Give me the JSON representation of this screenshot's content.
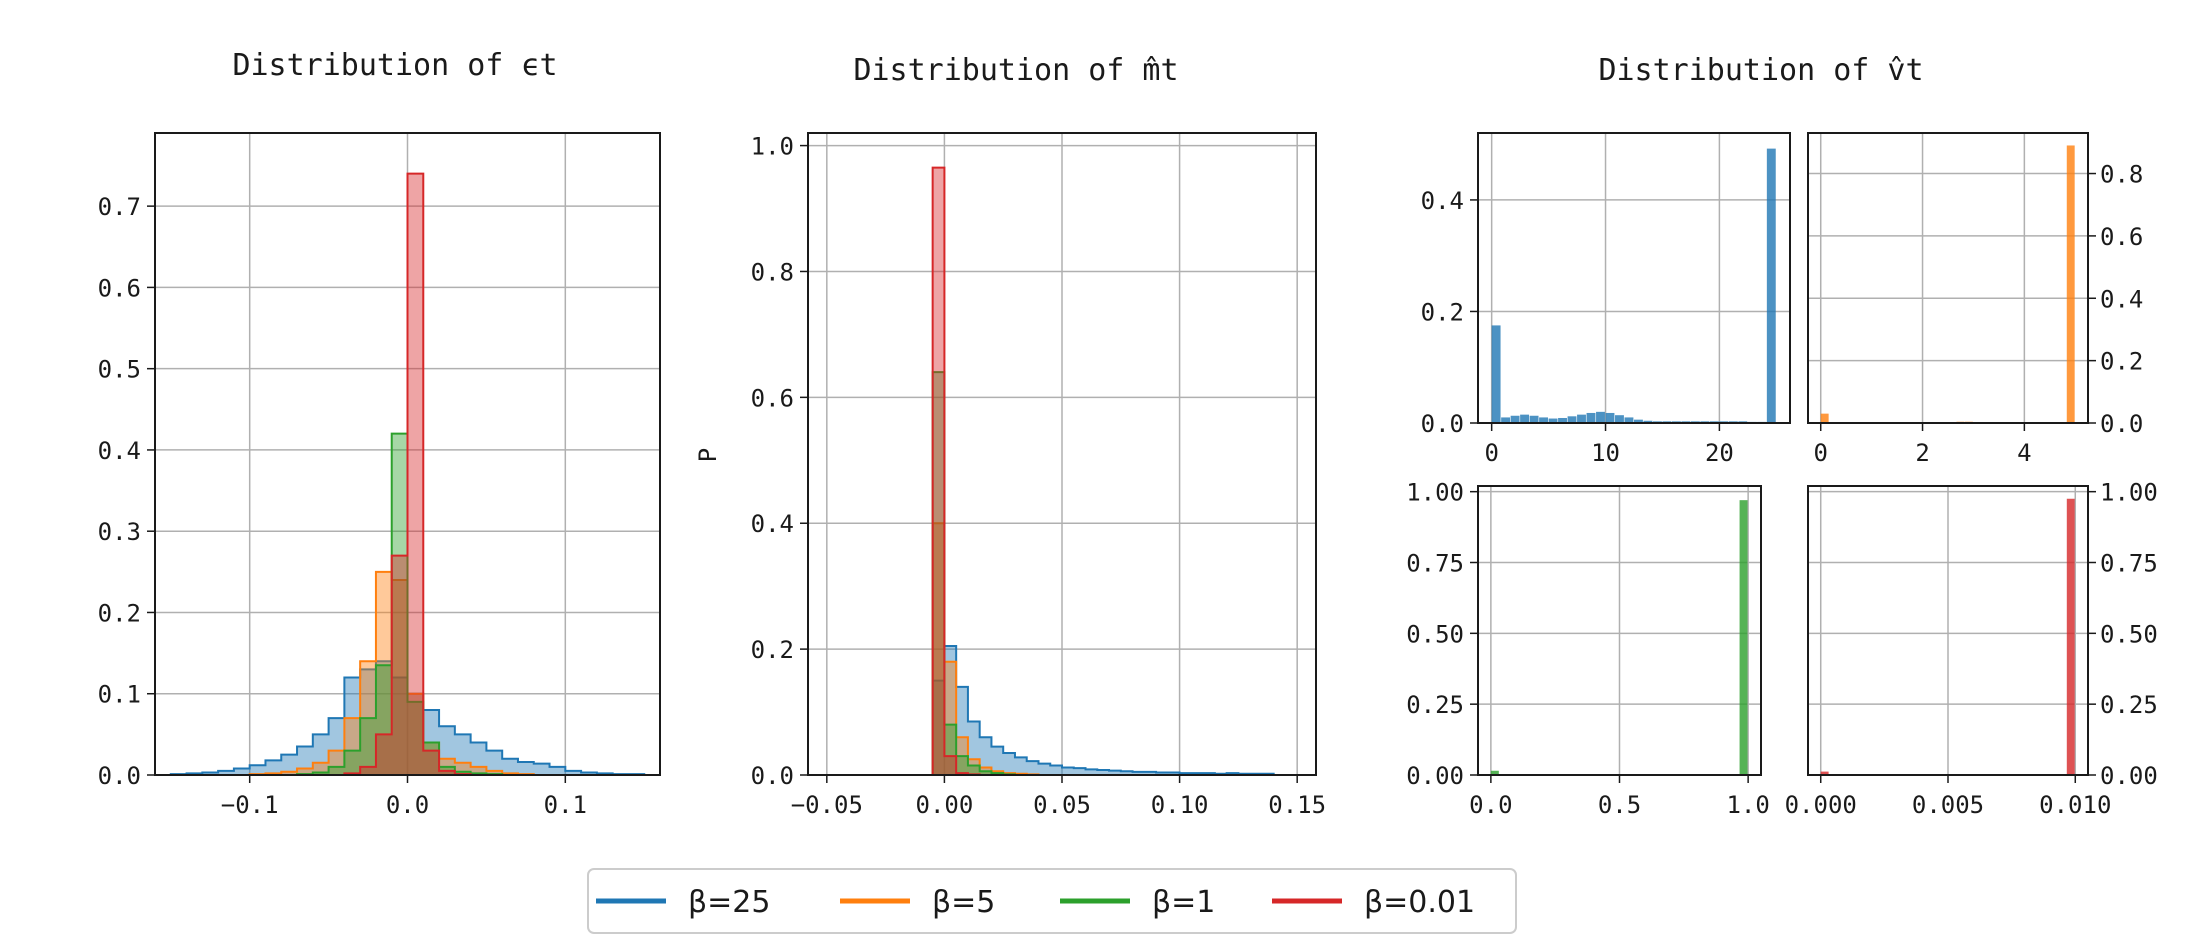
{
  "colors": {
    "b25": "#1f77b4",
    "b5": "#ff7f0e",
    "b1": "#2ca02c",
    "b001": "#d62728"
  },
  "legend": [
    {
      "label": "β=25",
      "color": "#1f77b4"
    },
    {
      "label": "β=5",
      "color": "#ff7f0e"
    },
    {
      "label": "β=1",
      "color": "#2ca02c"
    },
    {
      "label": "β=0.01",
      "color": "#d62728"
    }
  ],
  "chart_data": [
    {
      "type": "area",
      "title": "Distribution of ϵt",
      "xlim": [
        -0.16,
        0.16
      ],
      "ylim": [
        0,
        0.79
      ],
      "xticks": [
        -0.1,
        0,
        0.1
      ],
      "xtick_labels": [
        "−0.1",
        "0.0",
        "0.1"
      ],
      "yticks": [
        0,
        0.1,
        0.2,
        0.3,
        0.4,
        0.5,
        0.6,
        0.7
      ],
      "ytick_labels": [
        "0.0",
        "0.1",
        "0.2",
        "0.3",
        "0.4",
        "0.5",
        "0.6",
        "0.7"
      ],
      "grid": true,
      "bin_edges": [
        -0.15,
        -0.14,
        -0.13,
        -0.12,
        -0.11,
        -0.1,
        -0.09,
        -0.08,
        -0.07,
        -0.06,
        -0.05,
        -0.04,
        -0.03,
        -0.02,
        -0.01,
        0.0,
        0.01,
        0.02,
        0.03,
        0.04,
        0.05,
        0.06,
        0.07,
        0.08,
        0.09,
        0.1,
        0.11,
        0.12,
        0.13,
        0.14,
        0.15
      ],
      "series": [
        {
          "key": "b25",
          "values": [
            0.001,
            0.002,
            0.003,
            0.005,
            0.008,
            0.012,
            0.018,
            0.025,
            0.035,
            0.05,
            0.07,
            0.12,
            0.13,
            0.14,
            0.12,
            0.1,
            0.08,
            0.06,
            0.05,
            0.04,
            0.03,
            0.02,
            0.016,
            0.014,
            0.01,
            0.005,
            0.003,
            0.002,
            0.001,
            0.001
          ]
        },
        {
          "key": "b5",
          "values": [
            0,
            0,
            0,
            0,
            0,
            0.001,
            0.002,
            0.004,
            0.008,
            0.015,
            0.03,
            0.07,
            0.14,
            0.25,
            0.24,
            0.1,
            0.04,
            0.02,
            0.015,
            0.01,
            0.005,
            0.002,
            0.001,
            0,
            0,
            0,
            0,
            0,
            0,
            0
          ]
        },
        {
          "key": "b1",
          "values": [
            0,
            0,
            0,
            0,
            0,
            0,
            0,
            0,
            0.001,
            0.003,
            0.01,
            0.03,
            0.07,
            0.135,
            0.42,
            0.09,
            0.04,
            0.01,
            0.004,
            0.002,
            0.001,
            0,
            0,
            0,
            0,
            0,
            0,
            0,
            0,
            0
          ]
        },
        {
          "key": "b001",
          "values": [
            0,
            0,
            0,
            0,
            0,
            0,
            0,
            0,
            0,
            0,
            0,
            0.002,
            0.01,
            0.05,
            0.27,
            0.74,
            0.03,
            0.005,
            0.001,
            0,
            0,
            0,
            0,
            0,
            0,
            0,
            0,
            0,
            0,
            0
          ]
        }
      ]
    },
    {
      "type": "area",
      "title": "Distribution of m̂t",
      "ylabel": "P",
      "xlim": [
        -0.058,
        0.158
      ],
      "ylim": [
        0,
        1.02
      ],
      "xticks": [
        -0.05,
        0,
        0.05,
        0.1,
        0.15
      ],
      "xtick_labels": [
        "−0.05",
        "0.00",
        "0.05",
        "0.10",
        "0.15"
      ],
      "yticks": [
        0,
        0.2,
        0.4,
        0.6,
        0.8,
        1.0
      ],
      "ytick_labels": [
        "0.0",
        "0.2",
        "0.4",
        "0.6",
        "0.8",
        "1.0"
      ],
      "grid": true,
      "bin_edges": [
        -0.005,
        0.0,
        0.005,
        0.01,
        0.015,
        0.02,
        0.025,
        0.03,
        0.035,
        0.04,
        0.045,
        0.05,
        0.055,
        0.06,
        0.065,
        0.07,
        0.075,
        0.08,
        0.085,
        0.09,
        0.095,
        0.1,
        0.105,
        0.11,
        0.115,
        0.12,
        0.125,
        0.13,
        0.135,
        0.14
      ],
      "series": [
        {
          "key": "b25",
          "values": [
            0.15,
            0.205,
            0.14,
            0.085,
            0.06,
            0.045,
            0.035,
            0.028,
            0.022,
            0.018,
            0.015,
            0.012,
            0.011,
            0.009,
            0.008,
            0.007,
            0.006,
            0.005,
            0.005,
            0.004,
            0.004,
            0.003,
            0.003,
            0.003,
            0.002,
            0.003,
            0.002,
            0.002,
            0.002
          ]
        },
        {
          "key": "b5",
          "values": [
            0.4,
            0.18,
            0.06,
            0.025,
            0.012,
            0.006,
            0.003,
            0.002,
            0.001,
            0,
            0,
            0,
            0,
            0,
            0,
            0,
            0,
            0,
            0,
            0,
            0,
            0,
            0,
            0,
            0,
            0,
            0,
            0,
            0
          ]
        },
        {
          "key": "b1",
          "values": [
            0.64,
            0.08,
            0.03,
            0.015,
            0.006,
            0.003,
            0.001,
            0,
            0,
            0,
            0,
            0,
            0,
            0,
            0,
            0,
            0,
            0,
            0,
            0,
            0,
            0,
            0,
            0,
            0,
            0,
            0,
            0,
            0
          ]
        },
        {
          "key": "b001",
          "values": [
            0.965,
            0.03,
            0.003,
            0.001,
            0,
            0,
            0,
            0,
            0,
            0,
            0,
            0,
            0,
            0,
            0,
            0,
            0,
            0,
            0,
            0,
            0,
            0,
            0,
            0,
            0,
            0,
            0,
            0,
            0
          ]
        }
      ]
    },
    {
      "type": "bar",
      "title": "Distribution of v̂t",
      "series_key": "b25",
      "xlim": [
        -1.2,
        26.2
      ],
      "ylim": [
        0,
        0.52
      ],
      "xticks": [
        0,
        10,
        20
      ],
      "xtick_labels": [
        "0",
        "10",
        "20"
      ],
      "yticks": [
        0,
        0.2,
        0.4
      ],
      "ytick_labels": [
        "0.0",
        "0.2",
        "0.4"
      ],
      "grid": true,
      "bin_edges": [
        0,
        0.833,
        1.667,
        2.5,
        3.333,
        4.167,
        5,
        5.833,
        6.667,
        7.5,
        8.333,
        9.167,
        10,
        10.833,
        11.667,
        12.5,
        13.333,
        14.167,
        15,
        15.833,
        16.667,
        17.5,
        18.333,
        19.167,
        20,
        20.833,
        21.667,
        22.5,
        23.333,
        24.167,
        25
      ],
      "values": [
        0.175,
        0.01,
        0.013,
        0.015,
        0.013,
        0.01,
        0.008,
        0.009,
        0.012,
        0.015,
        0.018,
        0.02,
        0.018,
        0.014,
        0.01,
        0.006,
        0.004,
        0.003,
        0.003,
        0.003,
        0.003,
        0.003,
        0.003,
        0.003,
        0.003,
        0.003,
        0.003,
        0.002,
        0.002,
        0.492
      ]
    },
    {
      "type": "bar",
      "series_key": "b5",
      "yaxis_side": "right",
      "xlim": [
        -0.25,
        5.25
      ],
      "ylim": [
        0,
        0.93
      ],
      "xticks": [
        0,
        2,
        4
      ],
      "xtick_labels": [
        "0",
        "2",
        "4"
      ],
      "yticks": [
        0,
        0.2,
        0.4,
        0.6,
        0.8
      ],
      "ytick_labels": [
        "0.0",
        "0.2",
        "0.4",
        "0.6",
        "0.8"
      ],
      "grid": true,
      "bin_edges": [
        0,
        0.167,
        0.333,
        0.5,
        0.667,
        0.833,
        1.0,
        1.167,
        1.333,
        1.5,
        1.667,
        1.833,
        2.0,
        2.167,
        2.333,
        2.5,
        2.667,
        2.833,
        3.0,
        3.167,
        3.333,
        3.5,
        3.667,
        3.833,
        4.0,
        4.167,
        4.333,
        4.5,
        4.667,
        4.833,
        5.0
      ],
      "values": [
        0.03,
        0.001,
        0,
        0,
        0,
        0,
        0,
        0,
        0,
        0,
        0,
        0,
        0,
        0,
        0,
        0.002,
        0.004,
        0.004,
        0.002,
        0,
        0,
        0,
        0,
        0,
        0,
        0,
        0,
        0,
        0,
        0.89
      ]
    },
    {
      "type": "bar",
      "series_key": "b1",
      "xlim": [
        -0.05,
        1.05
      ],
      "ylim": [
        0,
        1.02
      ],
      "xticks": [
        0,
        0.5,
        1.0
      ],
      "xtick_labels": [
        "0.0",
        "0.5",
        "1.0"
      ],
      "yticks": [
        0,
        0.25,
        0.5,
        0.75,
        1.0
      ],
      "ytick_labels": [
        "0.00",
        "0.25",
        "0.50",
        "0.75",
        "1.00"
      ],
      "grid": true,
      "bin_edges": [
        0,
        0.0333,
        0.0667,
        0.1,
        0.1333,
        0.1667,
        0.2,
        0.2333,
        0.2667,
        0.3,
        0.3333,
        0.3667,
        0.4,
        0.4333,
        0.4667,
        0.5,
        0.5333,
        0.5667,
        0.6,
        0.6333,
        0.6667,
        0.7,
        0.7333,
        0.7667,
        0.8,
        0.8333,
        0.8667,
        0.9,
        0.9333,
        0.9667,
        1.0
      ],
      "values": [
        0.015,
        0.002,
        0.001,
        0.001,
        0.001,
        0.001,
        0.001,
        0.001,
        0.001,
        0.001,
        0.001,
        0.001,
        0.001,
        0.001,
        0.001,
        0.001,
        0.001,
        0.001,
        0.001,
        0.001,
        0.001,
        0.001,
        0.001,
        0.001,
        0.001,
        0.001,
        0.001,
        0.001,
        0.001,
        0.97
      ]
    },
    {
      "type": "bar",
      "series_key": "b001",
      "yaxis_side": "right",
      "xlim": [
        -0.0005,
        0.0105
      ],
      "ylim": [
        0,
        1.02
      ],
      "xticks": [
        0,
        0.005,
        0.01
      ],
      "xtick_labels": [
        "0.000",
        "0.005",
        "0.010"
      ],
      "yticks": [
        0,
        0.25,
        0.5,
        0.75,
        1.0
      ],
      "ytick_labels": [
        "0.00",
        "0.25",
        "0.50",
        "0.75",
        "1.00"
      ],
      "grid": true,
      "bin_edges": [
        0,
        0.000333,
        0.000667,
        0.001,
        0.001333,
        0.001667,
        0.002,
        0.002333,
        0.002667,
        0.003,
        0.003333,
        0.003667,
        0.004,
        0.004333,
        0.004667,
        0.005,
        0.005333,
        0.005667,
        0.006,
        0.006333,
        0.006667,
        0.007,
        0.007333,
        0.007667,
        0.008,
        0.008333,
        0.008667,
        0.009,
        0.009333,
        0.009667,
        0.01
      ],
      "values": [
        0.012,
        0.002,
        0.001,
        0.001,
        0.001,
        0.001,
        0.001,
        0.001,
        0.001,
        0.001,
        0.001,
        0.001,
        0.001,
        0.001,
        0.001,
        0.001,
        0.001,
        0.001,
        0.001,
        0.001,
        0.001,
        0.001,
        0.001,
        0.001,
        0.001,
        0.001,
        0.001,
        0.001,
        0.001,
        0.975
      ]
    }
  ]
}
